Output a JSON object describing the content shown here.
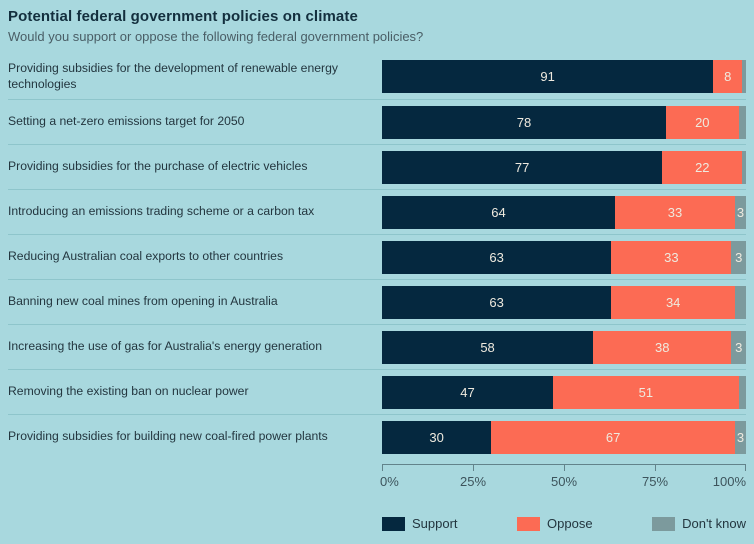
{
  "title": "Potential federal government policies on climate",
  "subtitle": "Would you support or oppose the following federal government policies?",
  "colors": {
    "background": "#a8d8de",
    "support": "#05283f",
    "oppose": "#fc6b54",
    "dont_know": "#7c9a9d",
    "row_separator": "#8ec5cb",
    "axis": "#62838b"
  },
  "chart_data": {
    "type": "bar",
    "orientation": "horizontal",
    "stacked": true,
    "title": "Potential federal government policies on climate",
    "subtitle": "Would you support or oppose the following federal government policies?",
    "xlim": [
      0,
      100
    ],
    "x_tick_labels": [
      "0%",
      "25%",
      "50%",
      "75%",
      "100%"
    ],
    "legend_position": "bottom",
    "series_names": [
      "Support",
      "Oppose",
      "Don't know"
    ],
    "rows": [
      {
        "label": "Providing subsidies for the development of renewable energy technologies",
        "support": 91,
        "oppose": 8,
        "dont_know": 1,
        "dont_know_label": ""
      },
      {
        "label": "Setting a net-zero emissions target for 2050",
        "support": 78,
        "oppose": 20,
        "dont_know": 2,
        "dont_know_label": ""
      },
      {
        "label": "Providing subsidies for the purchase of electric vehicles",
        "support": 77,
        "oppose": 22,
        "dont_know": 1,
        "dont_know_label": ""
      },
      {
        "label": "Introducing an emissions trading scheme or a carbon tax",
        "support": 64,
        "oppose": 33,
        "dont_know": 3,
        "dont_know_label": "3"
      },
      {
        "label": "Reducing Australian coal exports to other countries",
        "support": 63,
        "oppose": 33,
        "dont_know": 3,
        "dont_know_label": "3"
      },
      {
        "label": "Banning new coal mines from opening in Australia",
        "support": 63,
        "oppose": 34,
        "dont_know": 3,
        "dont_know_label": ""
      },
      {
        "label": "Increasing the use of gas for Australia's energy generation",
        "support": 58,
        "oppose": 38,
        "dont_know": 3,
        "dont_know_label": "3"
      },
      {
        "label": "Removing the existing ban on nuclear power",
        "support": 47,
        "oppose": 51,
        "dont_know": 2,
        "dont_know_label": ""
      },
      {
        "label": "Providing subsidies for building new coal-fired power plants",
        "support": 30,
        "oppose": 67,
        "dont_know": 3,
        "dont_know_label": "3"
      }
    ]
  },
  "legend": {
    "support": "Support",
    "oppose": "Oppose",
    "dont_know": "Don't know"
  }
}
